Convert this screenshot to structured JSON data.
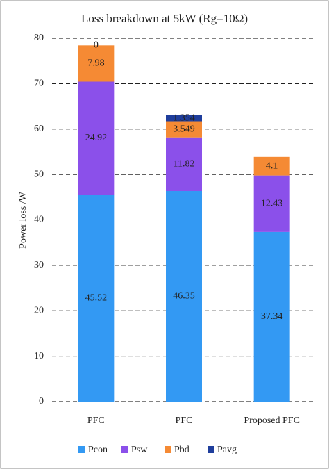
{
  "chart_data": {
    "type": "stacked_bar",
    "title": "Loss breakdown at 5kW (Rg=10Ω)",
    "y_label": "Power loss /W",
    "categories": [
      "PFC",
      "PFC",
      "Proposed PFC"
    ],
    "series": [
      {
        "name": "Pcon",
        "color": "#3399f3",
        "values": [
          45.52,
          46.35,
          37.34
        ]
      },
      {
        "name": "Psw",
        "color": "#8b50ea",
        "values": [
          24.92,
          11.82,
          12.43
        ]
      },
      {
        "name": "Pbd",
        "color": "#f58a34",
        "values": [
          7.98,
          3.549,
          4.1
        ]
      },
      {
        "name": "Pavg",
        "color": "#1f3e9c",
        "values": [
          0,
          1.354,
          null
        ]
      }
    ],
    "ylim": [
      0,
      80
    ],
    "yticks": [
      0,
      10,
      20,
      30,
      40,
      50,
      60,
      70,
      80
    ],
    "grid": true
  }
}
